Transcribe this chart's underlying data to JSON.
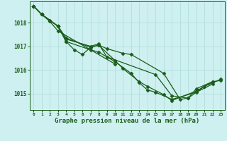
{
  "title": "Graphe pression niveau de la mer (hPa)",
  "bg_color": "#cff0f0",
  "grid_color": "#b0dede",
  "line_color": "#1a5c1a",
  "marker": "D",
  "markersize": 2.5,
  "linewidth": 0.9,
  "xlim": [
    -0.5,
    23.5
  ],
  "ylim": [
    1014.3,
    1018.9
  ],
  "yticks": [
    1015,
    1016,
    1017,
    1018
  ],
  "xticks": [
    0,
    1,
    2,
    3,
    4,
    5,
    6,
    7,
    8,
    9,
    10,
    11,
    12,
    13,
    14,
    15,
    16,
    17,
    18,
    19,
    20,
    21,
    22,
    23
  ],
  "series": [
    [
      0,
      1018.7
    ],
    [
      1,
      1018.35
    ],
    [
      3,
      1017.85
    ],
    [
      4,
      1017.35
    ],
    [
      7,
      1016.95
    ],
    [
      8,
      1017.05
    ],
    [
      9,
      1016.9
    ],
    [
      11,
      1016.7
    ],
    [
      12,
      1016.65
    ],
    [
      16,
      1015.85
    ],
    [
      18,
      1014.75
    ],
    [
      19,
      1014.8
    ],
    [
      20,
      1015.2
    ],
    [
      22,
      1015.5
    ],
    [
      23,
      1015.55
    ]
  ],
  "series_data": [
    [
      [
        0,
        1018.7
      ],
      [
        1,
        1018.35
      ],
      [
        3,
        1017.85
      ],
      [
        4,
        1017.35
      ],
      [
        7,
        1016.95
      ],
      [
        8,
        1017.05
      ],
      [
        9,
        1016.9
      ],
      [
        11,
        1016.7
      ],
      [
        12,
        1016.65
      ],
      [
        16,
        1015.85
      ],
      [
        18,
        1014.75
      ],
      [
        19,
        1014.8
      ],
      [
        20,
        1015.2
      ],
      [
        22,
        1015.5
      ],
      [
        23,
        1015.55
      ]
    ],
    [
      [
        0,
        1018.7
      ],
      [
        1,
        1018.35
      ],
      [
        3,
        1017.85
      ],
      [
        4,
        1017.3
      ],
      [
        7,
        1017.0
      ],
      [
        8,
        1017.1
      ],
      [
        9,
        1016.55
      ],
      [
        15,
        1015.8
      ],
      [
        17,
        1014.9
      ],
      [
        19,
        1014.8
      ],
      [
        21,
        1015.3
      ],
      [
        23,
        1015.6
      ]
    ],
    [
      [
        0,
        1018.7
      ],
      [
        1,
        1018.35
      ],
      [
        3,
        1017.85
      ],
      [
        4,
        1017.2
      ],
      [
        5,
        1016.85
      ],
      [
        6,
        1016.65
      ],
      [
        7,
        1016.95
      ],
      [
        8,
        1017.05
      ],
      [
        10,
        1016.4
      ],
      [
        11,
        1016.05
      ],
      [
        13,
        1015.5
      ],
      [
        14,
        1015.3
      ],
      [
        16,
        1014.95
      ],
      [
        17,
        1014.7
      ],
      [
        20,
        1015.1
      ],
      [
        22,
        1015.5
      ]
    ],
    [
      [
        0,
        1018.7
      ],
      [
        1,
        1018.35
      ],
      [
        2,
        1018.1
      ],
      [
        3,
        1017.85
      ],
      [
        4,
        1017.2
      ],
      [
        7,
        1016.85
      ],
      [
        8,
        1016.75
      ],
      [
        10,
        1016.35
      ],
      [
        12,
        1015.85
      ],
      [
        13,
        1015.45
      ],
      [
        14,
        1015.15
      ],
      [
        15,
        1015.05
      ],
      [
        17,
        1014.75
      ],
      [
        20,
        1015.05
      ],
      [
        22,
        1015.4
      ]
    ],
    [
      [
        0,
        1018.7
      ],
      [
        1,
        1018.35
      ],
      [
        2,
        1018.05
      ],
      [
        3,
        1017.65
      ],
      [
        10,
        1016.25
      ]
    ]
  ]
}
